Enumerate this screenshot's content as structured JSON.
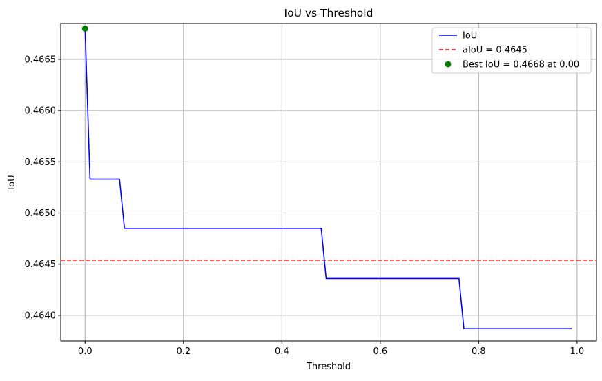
{
  "chart_data": {
    "type": "line",
    "title": "IoU vs Threshold",
    "xlabel": "Threshold",
    "ylabel": "IoU",
    "xlim": [
      -0.0495,
      1.0395
    ],
    "ylim": [
      0.46375,
      0.46685
    ],
    "x_ticks": [
      0.0,
      0.2,
      0.4,
      0.6,
      0.8,
      1.0
    ],
    "x_tick_labels": [
      "0.0",
      "0.2",
      "0.4",
      "0.6",
      "0.8",
      "1.0"
    ],
    "y_ticks": [
      0.464,
      0.4645,
      0.465,
      0.4655,
      0.466,
      0.4665
    ],
    "y_tick_labels": [
      "0.4640",
      "0.4645",
      "0.4650",
      "0.4655",
      "0.4660",
      "0.4665"
    ],
    "grid": true,
    "legend_position": "top-right",
    "series": [
      {
        "name": "IoU",
        "style": "solid",
        "color": "#0000ff",
        "x": [
          0.0,
          0.01,
          0.07,
          0.08,
          0.48,
          0.49,
          0.76,
          0.77,
          0.99
        ],
        "y": [
          0.4668,
          0.46533,
          0.46533,
          0.46485,
          0.46485,
          0.46436,
          0.46436,
          0.46387,
          0.46387
        ]
      },
      {
        "name": "aIoU = 0.4645",
        "style": "dashed-hline",
        "color": "#ff0000",
        "y": 0.46454
      },
      {
        "name": "Best IoU = 0.4668 at 0.00",
        "style": "marker",
        "color": "#008000",
        "x": [
          0.0
        ],
        "y": [
          0.4668
        ]
      }
    ],
    "legend": [
      {
        "label": "IoU",
        "marker": "line",
        "color": "#0000ff"
      },
      {
        "label": "aIoU = 0.4645",
        "marker": "dashed",
        "color": "#ff0000"
      },
      {
        "label": "Best IoU = 0.4668 at 0.00",
        "marker": "dot",
        "color": "#008000"
      }
    ]
  }
}
